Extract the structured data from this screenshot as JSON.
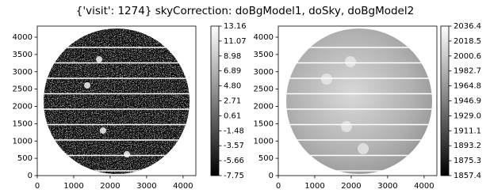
{
  "title": "{'visit': 1274} skyCorrection: doBgModel1, doSky, doBgModel2",
  "chart_data": [
    {
      "type": "heatmap",
      "colormap": "gray",
      "xlim": [
        0,
        4350
      ],
      "ylim": [
        0,
        4320
      ],
      "xticks": [
        0,
        1000,
        2000,
        3000,
        4000
      ],
      "yticks": [
        0,
        500,
        1000,
        1500,
        2000,
        2500,
        3000,
        3500,
        4000
      ],
      "clim": [
        -7.75,
        13.16
      ],
      "cticks": [
        13.16,
        11.07,
        8.98,
        6.89,
        {
          "value": 4.8,
          "label": "4.80"
        },
        2.71,
        0.61,
        -1.48,
        -3.57,
        -5.66,
        -7.75
      ]
    },
    {
      "type": "heatmap",
      "colormap": "gray",
      "xlim": [
        0,
        4350
      ],
      "ylim": [
        0,
        4320
      ],
      "xticks": [
        0,
        1000,
        2000,
        3000,
        4000
      ],
      "yticks": [
        0,
        500,
        1000,
        1500,
        2000,
        2500,
        3000,
        3500,
        4000
      ],
      "clim": [
        1857.4,
        2036.4
      ],
      "cticks": [
        2036.4,
        2018.5,
        2000.6,
        1982.7,
        1964.8,
        1946.9,
        {
          "value": 1929,
          "label": "1929.0"
        },
        1911.1,
        1893.2,
        1875.3,
        1857.4
      ]
    }
  ]
}
